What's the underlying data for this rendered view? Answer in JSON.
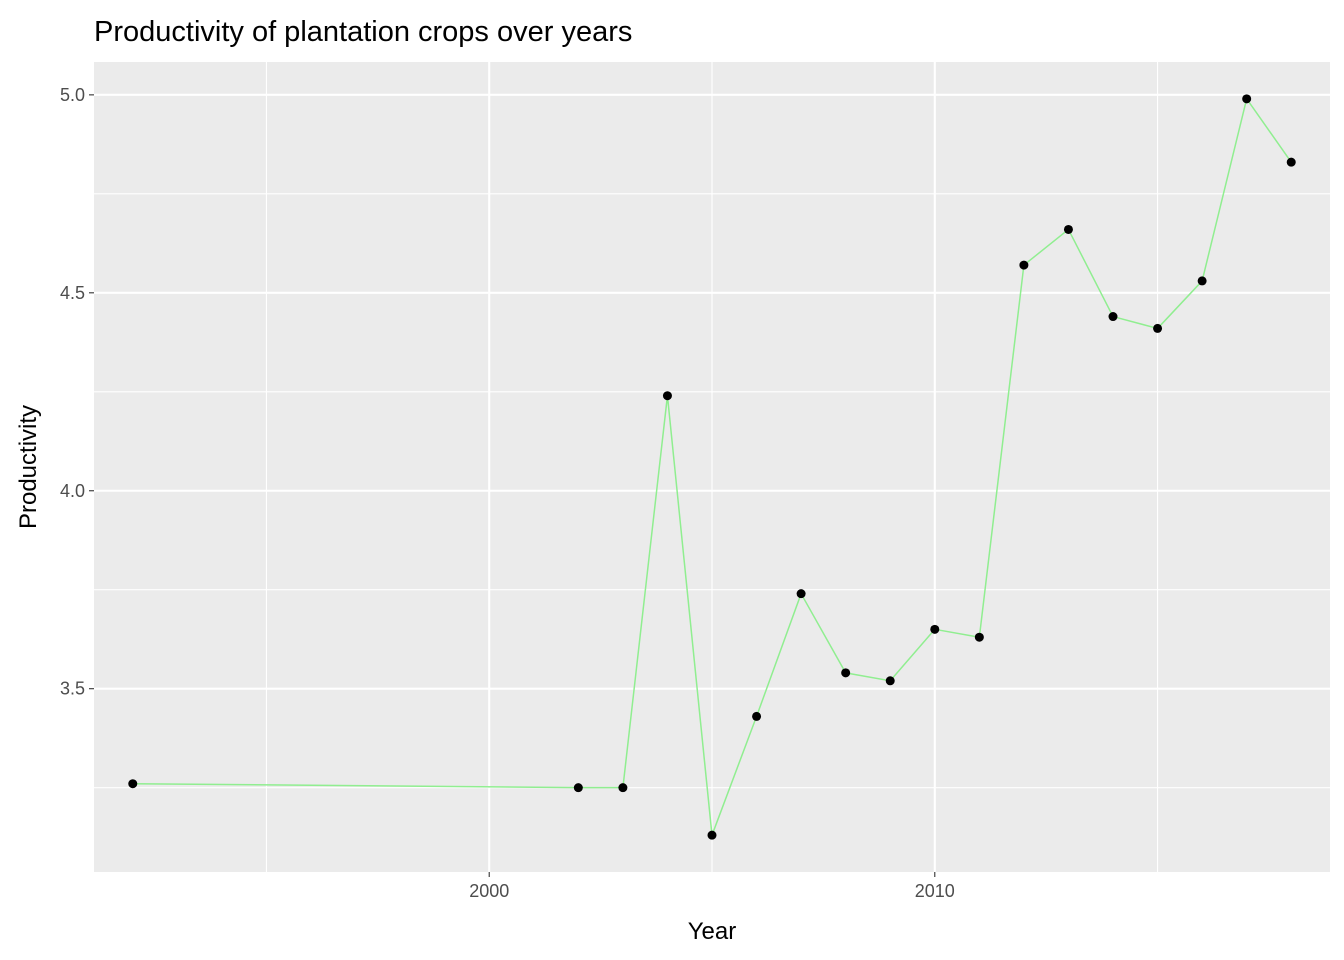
{
  "chart_data": {
    "type": "line",
    "title": "Productivity of plantation crops over years",
    "xlabel": "Year",
    "ylabel": "Productivity",
    "x": [
      1992,
      2002,
      2003,
      2004,
      2005,
      2006,
      2007,
      2008,
      2009,
      2010,
      2011,
      2012,
      2013,
      2014,
      2015,
      2016,
      2017,
      2018
    ],
    "series": [
      {
        "values": [
          3.26,
          3.25,
          3.25,
          4.24,
          3.13,
          3.43,
          3.74,
          3.54,
          3.52,
          3.65,
          3.63,
          4.57,
          4.66,
          4.44,
          4.41,
          4.53,
          4.99,
          4.83
        ]
      }
    ],
    "xlim": [
      1991.13,
      2018.87
    ],
    "ylim": [
      3.037,
      5.083
    ],
    "x_major_ticks": [
      2000,
      2010
    ],
    "x_tick_labels": [
      "2000",
      "2010"
    ],
    "x_minor_ticks": [
      1995,
      2005,
      2015
    ],
    "y_major_ticks": [
      3.5,
      4.0,
      4.5,
      5.0
    ],
    "y_tick_labels": [
      "3.5",
      "4.0",
      "4.5",
      "5.0"
    ],
    "y_minor_ticks": [
      3.25,
      3.75,
      4.25,
      4.75
    ],
    "grid": true,
    "legend": "none",
    "colors": {
      "line": "#90EE90",
      "points": "#000000",
      "panel": "#EBEBEB",
      "grid": "#FFFFFF"
    }
  }
}
